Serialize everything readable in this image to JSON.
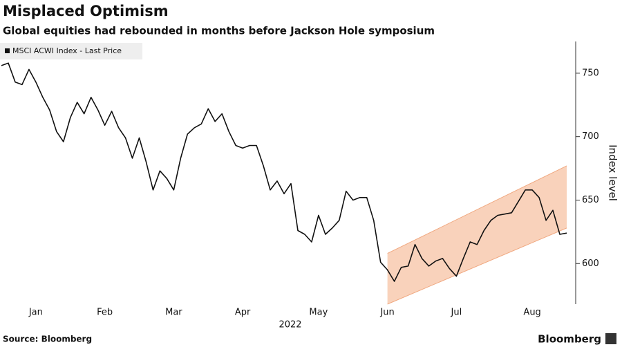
{
  "chart_data": {
    "type": "line",
    "title": "Misplaced Optimism",
    "subtitle": "Global equities had rebounded in months before Jackson Hole symposium",
    "xlabel": "2022",
    "ylabel": "Index level",
    "source": "Source: Bloomberg",
    "brand": "Bloomberg",
    "categories": [
      null,
      null,
      null,
      null,
      null,
      "Jan",
      null,
      null,
      null,
      null,
      null,
      null,
      null,
      null,
      null,
      "Feb",
      null,
      null,
      null,
      null,
      null,
      null,
      null,
      null,
      null,
      "Mar",
      null,
      null,
      null,
      null,
      null,
      null,
      null,
      null,
      null,
      "Apr",
      null,
      null,
      null,
      null,
      null,
      null,
      null,
      null,
      null,
      null,
      "May",
      null,
      null,
      null,
      null,
      null,
      null,
      null,
      null,
      null,
      "Jun",
      null,
      null,
      null,
      null,
      null,
      null,
      null,
      null,
      null,
      "Jul",
      null,
      null,
      null,
      null,
      null,
      null,
      null,
      null,
      null,
      null,
      "Aug",
      null,
      null,
      null,
      null,
      null
    ],
    "series": [
      {
        "name": "MSCI ACWI Index - Last Price",
        "color": "#111111",
        "values": [
          756,
          758,
          743,
          741,
          753,
          743,
          731,
          721,
          704,
          696,
          715,
          727,
          718,
          731,
          721,
          709,
          720,
          707,
          699,
          683,
          699,
          680,
          658,
          673,
          667,
          658,
          683,
          702,
          707,
          710,
          722,
          712,
          718,
          704,
          693,
          691,
          693,
          693,
          677,
          658,
          665,
          655,
          663,
          626,
          623,
          617,
          638,
          623,
          628,
          634,
          657,
          650,
          652,
          652,
          634,
          601,
          595,
          586,
          597,
          598,
          615,
          604,
          598,
          602,
          604,
          596,
          590,
          604,
          617,
          615,
          626,
          634,
          638,
          639,
          640,
          649,
          658,
          658,
          652,
          634,
          642,
          623,
          624
        ]
      }
    ],
    "band": {
      "start": 56,
      "end": 82,
      "lower": [
        568,
        628
      ],
      "upper": [
        608,
        677
      ],
      "color": "#f9d2bb",
      "edge": "#f0a880"
    },
    "ylim": [
      568,
      775
    ],
    "yticks": [
      600,
      650,
      700,
      750
    ]
  }
}
